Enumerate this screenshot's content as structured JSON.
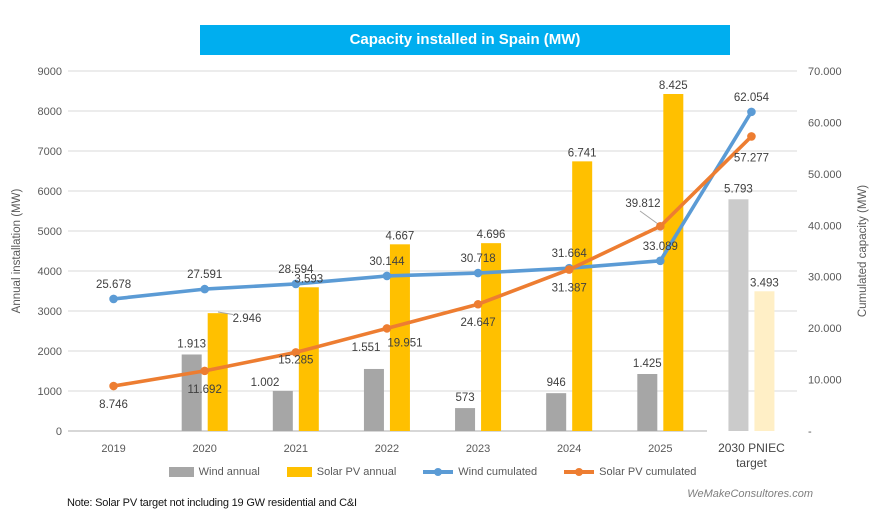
{
  "title": {
    "text": "Capacity installed in Spain (MW)"
  },
  "note": "Note: Solar PV target not including 19 GW residential and C&I",
  "watermark": "WeMakeConsultores.com",
  "colors": {
    "banner": "#00AEEF",
    "gridline": "#D9D9D9",
    "axis_line": "#BFBFBF",
    "axis_text": "#595959",
    "data_label": "#404040",
    "wind_bar": "#A6A6A6",
    "solar_bar": "#FFC000",
    "wind_bar_target": "#CBCBCB",
    "solar_bar_target": "#FFEFC6",
    "wind_line": "#5B9BD5",
    "solar_line": "#ED7D31",
    "leader_line": "#A6A6A6"
  },
  "chart_data": {
    "type": "combo (bar + line, dual axis)",
    "categories": [
      "2019",
      "2020",
      "2021",
      "2022",
      "2023",
      "2024",
      "2025",
      "2030 PNIEC target"
    ],
    "left_axis": {
      "title": "Annual installation (MW)",
      "min": 0,
      "max": 9000,
      "step": 1000,
      "tick_labels": [
        "0",
        "1000",
        "2000",
        "3000",
        "4000",
        "5000",
        "6000",
        "7000",
        "8000",
        "9000"
      ]
    },
    "right_axis": {
      "title": "Cumulated capacity (MW)",
      "min": 0,
      "max": 70000,
      "step": 10000,
      "tick_labels": [
        "-",
        "10.000",
        "20.000",
        "30.000",
        "40.000",
        "50.000",
        "60.000",
        "70.000"
      ]
    },
    "grid": true,
    "legend_position": "bottom",
    "series": [
      {
        "name": "Wind annual",
        "kind": "bar",
        "axis": "left",
        "values": [
          null,
          1913,
          1002,
          1551,
          573,
          946,
          1425,
          5793
        ],
        "labels": [
          "",
          "1.913",
          "1.002",
          "1.551",
          "573",
          "946",
          "1.425",
          "5.793"
        ]
      },
      {
        "name": "Solar PV annual",
        "kind": "bar",
        "axis": "left",
        "values": [
          null,
          2946,
          3593,
          4667,
          4696,
          6741,
          8425,
          3493
        ],
        "labels": [
          "",
          "2.946",
          "3.593",
          "4.667",
          "4.696",
          "6.741",
          "8.425",
          "3.493"
        ]
      },
      {
        "name": "Wind cumulated",
        "kind": "line",
        "axis": "right",
        "values": [
          25678,
          27591,
          28594,
          30144,
          30718,
          31664,
          33089,
          62054
        ],
        "labels": [
          "25.678",
          "27.591",
          "28.594",
          "30.144",
          "30.718",
          "31.664",
          "33.089",
          "62.054"
        ]
      },
      {
        "name": "Solar PV cumulated",
        "kind": "line",
        "axis": "right",
        "values": [
          8746,
          11692,
          15285,
          19951,
          24647,
          31387,
          39812,
          57277
        ],
        "labels": [
          "8.746",
          "11.692",
          "15.285",
          "19.951",
          "24.647",
          "31.387",
          "39.812",
          "57.277"
        ]
      }
    ]
  }
}
